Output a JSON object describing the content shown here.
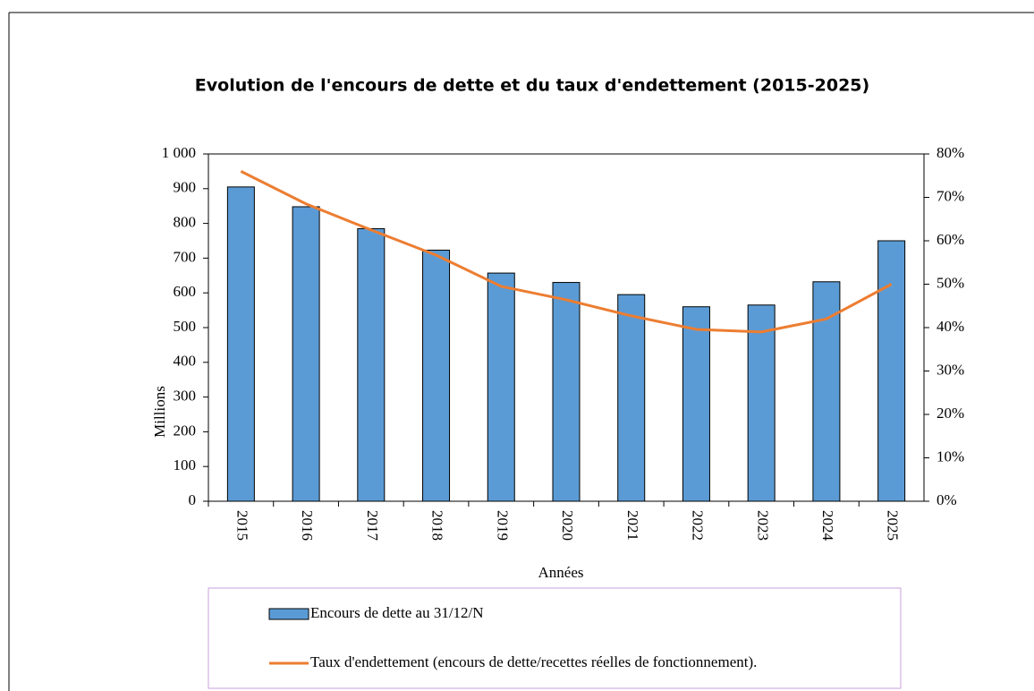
{
  "chart_data": {
    "type": "bar",
    "title": "Evolution de l'encours de dette et du taux d'endettement (2015-2025)",
    "x_label": "Années",
    "y_label": "Millions",
    "categories": [
      "2015",
      "2016",
      "2017",
      "2018",
      "2019",
      "2020",
      "2021",
      "2022",
      "2023",
      "2024",
      "2025"
    ],
    "series": [
      {
        "name": "Encours de dette  au 31/12/N",
        "type": "bar",
        "color": "#5b9bd5",
        "values": [
          905,
          848,
          785,
          723,
          657,
          630,
          595,
          560,
          565,
          632,
          750
        ]
      },
      {
        "name": "Taux d'endettement (encours de dette/recettes réelles de fonctionnement).",
        "type": "line",
        "axis": "y2",
        "color": "#ed7d31",
        "values": [
          76,
          68.5,
          62.5,
          56.7,
          49.5,
          46.4,
          42.7,
          39.6,
          39,
          42,
          50
        ]
      }
    ],
    "ylim": [
      0,
      1000
    ],
    "yticks": [
      0,
      100,
      200,
      300,
      400,
      500,
      600,
      700,
      800,
      900,
      {
        "value": 1000,
        "label": "1 000"
      }
    ],
    "y2lim": [
      0,
      80
    ],
    "y2ticks": [
      {
        "value": 0,
        "label": "0%"
      },
      {
        "value": 10,
        "label": "10%"
      },
      {
        "value": 20,
        "label": "20%"
      },
      {
        "value": 30,
        "label": "30%"
      },
      {
        "value": 40,
        "label": "40%"
      },
      {
        "value": 50,
        "label": "50%"
      },
      {
        "value": 60,
        "label": "60%"
      },
      {
        "value": 70,
        "label": "70%"
      },
      {
        "value": 80,
        "label": "80%"
      }
    ],
    "grid": false
  }
}
